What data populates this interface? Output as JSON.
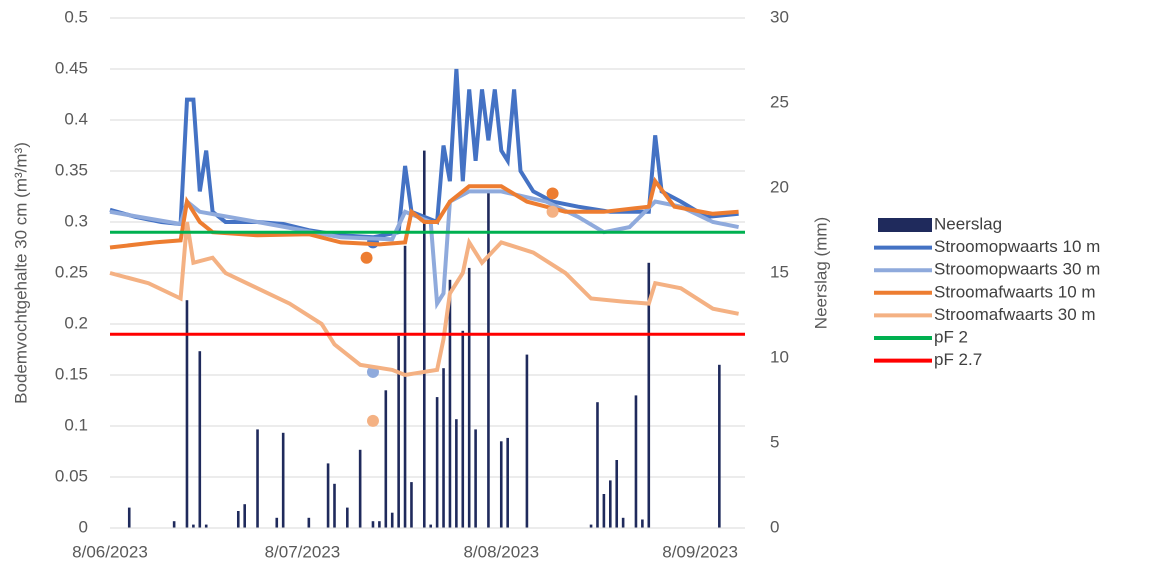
{
  "chart_data": {
    "type": "line",
    "ylabel": "Bodemvochtgehalte 30 cm (m³/m³)",
    "y2label": "Neerslag (mm)",
    "xlim": [
      "2023-06-08",
      "2023-09-15"
    ],
    "xticks": [
      {
        "value": "2023-06-08",
        "label": "8/06/2023"
      },
      {
        "value": "2023-07-08",
        "label": "8/07/2023"
      },
      {
        "value": "2023-08-08",
        "label": "8/08/2023"
      },
      {
        "value": "2023-09-08",
        "label": "8/09/2023"
      }
    ],
    "ylim": [
      0,
      0.5
    ],
    "yticks": [
      0,
      0.05,
      0.1,
      0.15,
      0.2,
      0.25,
      0.3,
      0.35,
      0.4,
      0.45,
      0.5
    ],
    "y2lim": [
      0,
      30
    ],
    "y2ticks": [
      0,
      5,
      10,
      15,
      20,
      25,
      30
    ],
    "grid": true,
    "legend": "right",
    "series": [
      {
        "name": "Neerslag",
        "type": "bar",
        "axis": "y2",
        "color": "#1f2a5c",
        "x": [
          "2023-06-11",
          "2023-06-18",
          "2023-06-20",
          "2023-06-21",
          "2023-06-22",
          "2023-06-23",
          "2023-06-28",
          "2023-06-29",
          "2023-07-01",
          "2023-07-04",
          "2023-07-05",
          "2023-07-09",
          "2023-07-12",
          "2023-07-13",
          "2023-07-15",
          "2023-07-17",
          "2023-07-19",
          "2023-07-20",
          "2023-07-21",
          "2023-07-22",
          "2023-07-23",
          "2023-07-24",
          "2023-07-25",
          "2023-07-27",
          "2023-07-28",
          "2023-07-29",
          "2023-07-30",
          "2023-07-31",
          "2023-08-01",
          "2023-08-02",
          "2023-08-03",
          "2023-08-04",
          "2023-08-06",
          "2023-08-08",
          "2023-08-09",
          "2023-08-12",
          "2023-08-22",
          "2023-08-23",
          "2023-08-24",
          "2023-08-25",
          "2023-08-26",
          "2023-08-27",
          "2023-08-29",
          "2023-08-30",
          "2023-08-31",
          "2023-09-11"
        ],
        "values": [
          1.2,
          0.4,
          13.4,
          0.2,
          10.4,
          0.2,
          1.0,
          1.4,
          5.8,
          0.6,
          5.6,
          0.6,
          3.8,
          2.6,
          1.2,
          4.6,
          0.4,
          0.4,
          8.1,
          0.9,
          11.3,
          16.6,
          2.7,
          22.2,
          0.2,
          7.7,
          9.4,
          14.6,
          6.4,
          11.6,
          15.3,
          5.8,
          19.9,
          5.1,
          5.3,
          10.2,
          0.2,
          7.4,
          2.0,
          2.8,
          4.0,
          0.6,
          7.8,
          0.5,
          15.6,
          9.6
        ]
      },
      {
        "name": "Stroomopwaarts 10 m",
        "color": "#4472c4",
        "x": [
          "2023-06-08",
          "2023-06-12",
          "2023-06-16",
          "2023-06-19",
          "2023-06-20",
          "2023-06-21",
          "2023-06-22",
          "2023-06-23",
          "2023-06-24",
          "2023-06-26",
          "2023-07-01",
          "2023-07-05",
          "2023-07-09",
          "2023-07-14",
          "2023-07-19",
          "2023-07-23",
          "2023-07-24",
          "2023-07-25",
          "2023-07-27",
          "2023-07-29",
          "2023-07-30",
          "2023-07-31",
          "2023-08-01",
          "2023-08-02",
          "2023-08-03",
          "2023-08-04",
          "2023-08-05",
          "2023-08-06",
          "2023-08-07",
          "2023-08-08",
          "2023-08-09",
          "2023-08-10",
          "2023-08-11",
          "2023-08-13",
          "2023-08-16",
          "2023-08-20",
          "2023-08-25",
          "2023-08-29",
          "2023-08-31",
          "2023-09-01",
          "2023-09-02",
          "2023-09-05",
          "2023-09-09",
          "2023-09-14"
        ],
        "values": [
          0.312,
          0.305,
          0.3,
          0.298,
          0.42,
          0.42,
          0.33,
          0.37,
          0.31,
          0.3,
          0.3,
          0.298,
          0.292,
          0.287,
          0.285,
          0.29,
          0.355,
          0.31,
          0.305,
          0.3,
          0.375,
          0.34,
          0.45,
          0.34,
          0.43,
          0.36,
          0.43,
          0.38,
          0.43,
          0.37,
          0.36,
          0.43,
          0.35,
          0.33,
          0.32,
          0.315,
          0.31,
          0.31,
          0.31,
          0.385,
          0.33,
          0.32,
          0.305,
          0.308
        ],
        "dots": {
          "x": [
            "2023-07-19"
          ],
          "values": [
            0.28
          ]
        }
      },
      {
        "name": "Stroomopwaarts 30 m",
        "color": "#8faadc",
        "x": [
          "2023-06-08",
          "2023-06-19",
          "2023-06-20",
          "2023-06-22",
          "2023-07-01",
          "2023-07-14",
          "2023-07-22",
          "2023-07-24",
          "2023-07-26",
          "2023-07-28",
          "2023-07-29",
          "2023-07-30",
          "2023-07-31",
          "2023-08-03",
          "2023-08-08",
          "2023-08-15",
          "2023-08-20",
          "2023-08-24",
          "2023-08-28",
          "2023-09-01",
          "2023-09-05",
          "2023-09-10",
          "2023-09-14"
        ],
        "values": [
          0.31,
          0.298,
          0.32,
          0.31,
          0.3,
          0.285,
          0.283,
          0.31,
          0.305,
          0.3,
          0.22,
          0.23,
          0.32,
          0.33,
          0.33,
          0.32,
          0.305,
          0.29,
          0.295,
          0.32,
          0.315,
          0.3,
          0.295
        ],
        "dots": {
          "x": [
            "2023-07-19"
          ],
          "values": [
            0.153
          ]
        }
      },
      {
        "name": "Stroomafwaarts 10 m",
        "color": "#ed7d31",
        "x": [
          "2023-06-08",
          "2023-06-15",
          "2023-06-19",
          "2023-06-20",
          "2023-06-22",
          "2023-06-24",
          "2023-07-01",
          "2023-07-09",
          "2023-07-14",
          "2023-07-20",
          "2023-07-24",
          "2023-07-25",
          "2023-07-27",
          "2023-07-29",
          "2023-07-31",
          "2023-08-03",
          "2023-08-08",
          "2023-08-12",
          "2023-08-18",
          "2023-08-24",
          "2023-08-31",
          "2023-09-01",
          "2023-09-04",
          "2023-09-10",
          "2023-09-14"
        ],
        "values": [
          0.275,
          0.28,
          0.282,
          0.32,
          0.3,
          0.29,
          0.287,
          0.288,
          0.28,
          0.278,
          0.28,
          0.31,
          0.3,
          0.3,
          0.32,
          0.335,
          0.335,
          0.32,
          0.31,
          0.31,
          0.315,
          0.34,
          0.315,
          0.308,
          0.31
        ],
        "dots": {
          "x": [
            "2023-07-18",
            "2023-08-16"
          ],
          "values": [
            0.265,
            0.328
          ]
        }
      },
      {
        "name": "Stroomafwaarts 30 m",
        "color": "#f4b183",
        "x": [
          "2023-06-08",
          "2023-06-14",
          "2023-06-19",
          "2023-06-20",
          "2023-06-21",
          "2023-06-24",
          "2023-06-26",
          "2023-07-01",
          "2023-07-06",
          "2023-07-11",
          "2023-07-13",
          "2023-07-17",
          "2023-07-22",
          "2023-07-24",
          "2023-07-29",
          "2023-07-30",
          "2023-07-31",
          "2023-08-02",
          "2023-08-03",
          "2023-08-05",
          "2023-08-08",
          "2023-08-13",
          "2023-08-18",
          "2023-08-22",
          "2023-08-27",
          "2023-08-31",
          "2023-09-01",
          "2023-09-05",
          "2023-09-10",
          "2023-09-14"
        ],
        "values": [
          0.25,
          0.24,
          0.225,
          0.3,
          0.26,
          0.265,
          0.25,
          0.235,
          0.22,
          0.2,
          0.18,
          0.16,
          0.155,
          0.15,
          0.155,
          0.185,
          0.23,
          0.25,
          0.28,
          0.26,
          0.28,
          0.27,
          0.25,
          0.225,
          0.222,
          0.22,
          0.24,
          0.235,
          0.215,
          0.21
        ],
        "dots": {
          "x": [
            "2023-07-19",
            "2023-08-16"
          ],
          "values": [
            0.105,
            0.31
          ]
        }
      },
      {
        "name": "pF 2",
        "type": "hline",
        "color": "#00b050",
        "value": 0.29
      },
      {
        "name": "pF 2.7",
        "type": "hline",
        "color": "#ff0000",
        "value": 0.19
      }
    ]
  }
}
